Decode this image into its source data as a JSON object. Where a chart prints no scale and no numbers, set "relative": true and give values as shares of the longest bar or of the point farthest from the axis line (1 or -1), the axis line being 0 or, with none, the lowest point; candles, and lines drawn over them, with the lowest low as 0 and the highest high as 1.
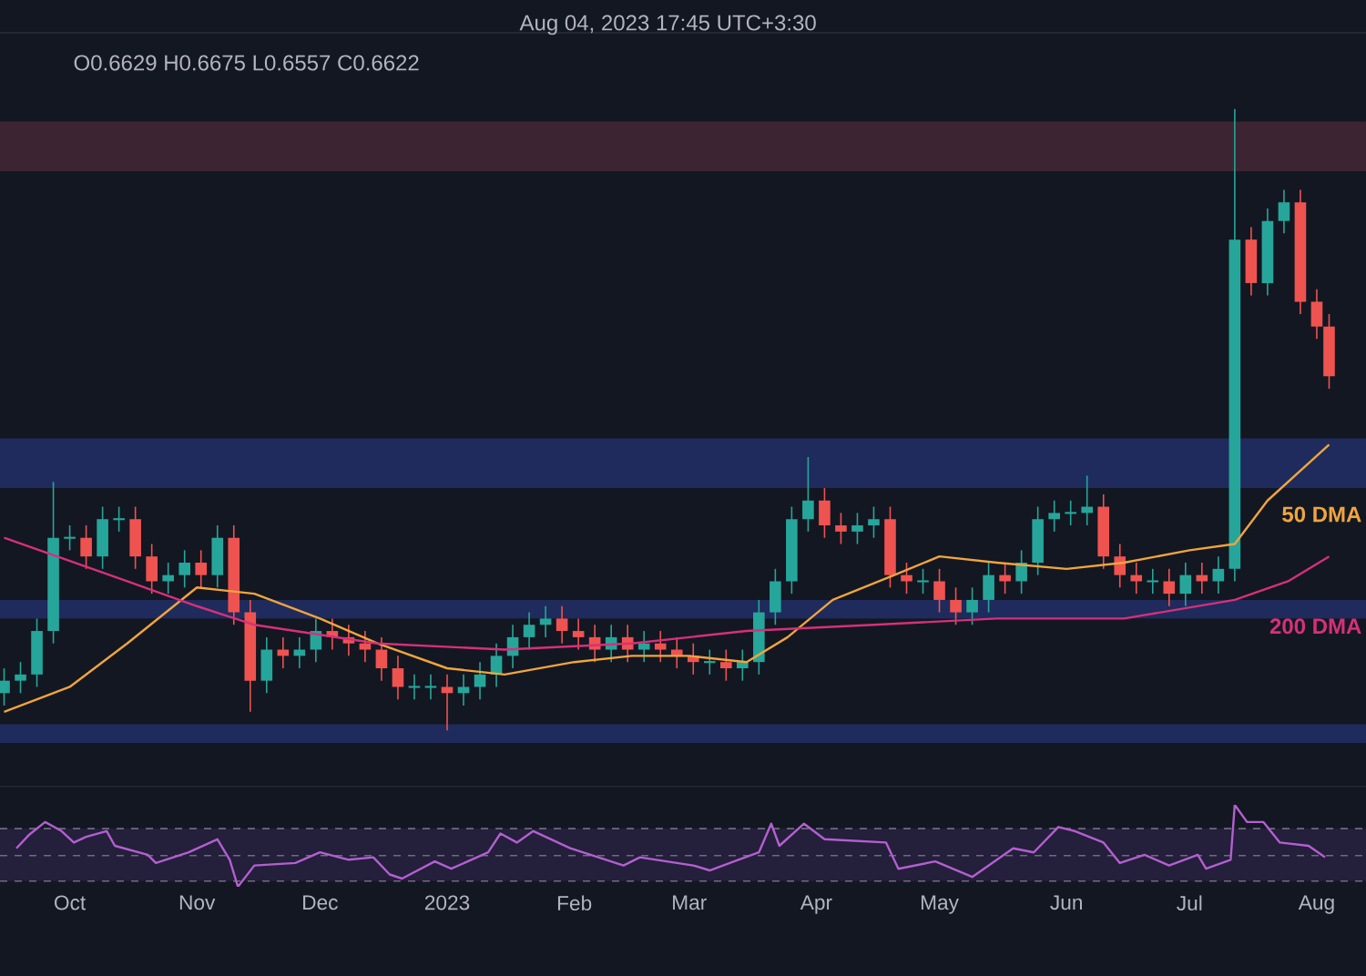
{
  "chart_data": [
    {
      "type": "candlestick",
      "relative": true,
      "xlim": [
        "2022-09-14",
        "2023-08-13"
      ],
      "tick_labels": false,
      "annotations": [
        "Aug 04, 2023 17:45 UTC+3:30",
        "O0.6629 H0.6675 L0.6557 C0.6622"
      ],
      "bands": [
        {
          "axis": "y",
          "from": 0.9,
          "to": 0.98,
          "color": "#3d2432"
        },
        {
          "axis": "y",
          "from": 0.39,
          "to": 0.47,
          "color": "#1f2b5c"
        },
        {
          "axis": "y",
          "from": 0.18,
          "to": 0.21,
          "color": "#1f2b5c"
        },
        {
          "axis": "y",
          "from": -0.02,
          "to": 0.01,
          "color": "#1f2b5c"
        }
      ],
      "x": [
        "2022-09-15",
        "2022-09-19",
        "2022-09-23",
        "2022-09-27",
        "2022-10-01",
        "2022-10-05",
        "2022-10-09",
        "2022-10-13",
        "2022-10-17",
        "2022-10-21",
        "2022-10-25",
        "2022-10-29",
        "2022-11-02",
        "2022-11-06",
        "2022-11-10",
        "2022-11-14",
        "2022-11-18",
        "2022-11-22",
        "2022-11-26",
        "2022-11-30",
        "2022-12-04",
        "2022-12-08",
        "2022-12-12",
        "2022-12-16",
        "2022-12-20",
        "2022-12-24",
        "2022-12-28",
        "2023-01-01",
        "2023-01-05",
        "2023-01-09",
        "2023-01-13",
        "2023-01-17",
        "2023-01-21",
        "2023-01-25",
        "2023-01-29",
        "2023-02-02",
        "2023-02-06",
        "2023-02-10",
        "2023-02-14",
        "2023-02-18",
        "2023-02-22",
        "2023-02-26",
        "2023-03-02",
        "2023-03-06",
        "2023-03-10",
        "2023-03-14",
        "2023-03-18",
        "2023-03-22",
        "2023-03-26",
        "2023-03-30",
        "2023-04-03",
        "2023-04-07",
        "2023-04-11",
        "2023-04-15",
        "2023-04-19",
        "2023-04-23",
        "2023-04-27",
        "2023-05-01",
        "2023-05-05",
        "2023-05-09",
        "2023-05-13",
        "2023-05-17",
        "2023-05-21",
        "2023-05-25",
        "2023-05-29",
        "2023-06-02",
        "2023-06-06",
        "2023-06-10",
        "2023-06-14",
        "2023-06-18",
        "2023-06-22",
        "2023-06-26",
        "2023-06-30",
        "2023-07-04",
        "2023-07-08",
        "2023-07-12",
        "2023-07-16",
        "2023-07-20",
        "2023-07-24",
        "2023-07-28",
        "2023-08-01",
        "2023-08-04"
      ],
      "ohlc": [
        [
          0.06,
          0.1,
          0.04,
          0.08
        ],
        [
          0.08,
          0.11,
          0.06,
          0.09
        ],
        [
          0.09,
          0.18,
          0.07,
          0.16
        ],
        [
          0.16,
          0.4,
          0.14,
          0.31
        ],
        [
          0.31,
          0.33,
          0.29,
          0.31
        ],
        [
          0.31,
          0.33,
          0.26,
          0.28
        ],
        [
          0.28,
          0.36,
          0.26,
          0.34
        ],
        [
          0.34,
          0.36,
          0.32,
          0.34
        ],
        [
          0.34,
          0.36,
          0.26,
          0.28
        ],
        [
          0.28,
          0.3,
          0.22,
          0.24
        ],
        [
          0.24,
          0.27,
          0.22,
          0.25
        ],
        [
          0.25,
          0.29,
          0.23,
          0.27
        ],
        [
          0.27,
          0.29,
          0.23,
          0.25
        ],
        [
          0.25,
          0.33,
          0.23,
          0.31
        ],
        [
          0.31,
          0.33,
          0.17,
          0.19
        ],
        [
          0.19,
          0.21,
          0.03,
          0.08
        ],
        [
          0.08,
          0.15,
          0.06,
          0.13
        ],
        [
          0.13,
          0.15,
          0.1,
          0.12
        ],
        [
          0.12,
          0.15,
          0.1,
          0.13
        ],
        [
          0.13,
          0.18,
          0.11,
          0.16
        ],
        [
          0.16,
          0.18,
          0.13,
          0.15
        ],
        [
          0.15,
          0.17,
          0.12,
          0.14
        ],
        [
          0.14,
          0.16,
          0.11,
          0.13
        ],
        [
          0.13,
          0.15,
          0.08,
          0.1
        ],
        [
          0.1,
          0.12,
          0.05,
          0.07
        ],
        [
          0.07,
          0.09,
          0.05,
          0.07
        ],
        [
          0.07,
          0.09,
          0.05,
          0.07
        ],
        [
          0.07,
          0.09,
          0.0,
          0.06
        ],
        [
          0.06,
          0.09,
          0.04,
          0.07
        ],
        [
          0.07,
          0.11,
          0.05,
          0.09
        ],
        [
          0.09,
          0.14,
          0.07,
          0.12
        ],
        [
          0.12,
          0.17,
          0.1,
          0.15
        ],
        [
          0.15,
          0.19,
          0.13,
          0.17
        ],
        [
          0.17,
          0.2,
          0.15,
          0.18
        ],
        [
          0.18,
          0.2,
          0.14,
          0.16
        ],
        [
          0.16,
          0.18,
          0.13,
          0.15
        ],
        [
          0.15,
          0.17,
          0.11,
          0.13
        ],
        [
          0.13,
          0.17,
          0.11,
          0.15
        ],
        [
          0.15,
          0.17,
          0.11,
          0.13
        ],
        [
          0.13,
          0.16,
          0.11,
          0.14
        ],
        [
          0.14,
          0.16,
          0.11,
          0.13
        ],
        [
          0.13,
          0.15,
          0.1,
          0.12
        ],
        [
          0.12,
          0.14,
          0.09,
          0.11
        ],
        [
          0.11,
          0.13,
          0.09,
          0.11
        ],
        [
          0.11,
          0.13,
          0.08,
          0.1
        ],
        [
          0.1,
          0.13,
          0.08,
          0.11
        ],
        [
          0.11,
          0.21,
          0.09,
          0.19
        ],
        [
          0.19,
          0.26,
          0.17,
          0.24
        ],
        [
          0.24,
          0.36,
          0.22,
          0.34
        ],
        [
          0.34,
          0.44,
          0.32,
          0.37
        ],
        [
          0.37,
          0.39,
          0.31,
          0.33
        ],
        [
          0.33,
          0.35,
          0.3,
          0.32
        ],
        [
          0.32,
          0.35,
          0.3,
          0.33
        ],
        [
          0.33,
          0.36,
          0.31,
          0.34
        ],
        [
          0.34,
          0.36,
          0.23,
          0.25
        ],
        [
          0.25,
          0.27,
          0.22,
          0.24
        ],
        [
          0.24,
          0.26,
          0.22,
          0.24
        ],
        [
          0.24,
          0.26,
          0.19,
          0.21
        ],
        [
          0.21,
          0.23,
          0.17,
          0.19
        ],
        [
          0.19,
          0.23,
          0.17,
          0.21
        ],
        [
          0.21,
          0.27,
          0.19,
          0.25
        ],
        [
          0.25,
          0.27,
          0.22,
          0.24
        ],
        [
          0.24,
          0.29,
          0.22,
          0.27
        ],
        [
          0.27,
          0.36,
          0.25,
          0.34
        ],
        [
          0.34,
          0.37,
          0.32,
          0.35
        ],
        [
          0.35,
          0.37,
          0.33,
          0.35
        ],
        [
          0.35,
          0.41,
          0.33,
          0.36
        ],
        [
          0.36,
          0.38,
          0.26,
          0.28
        ],
        [
          0.28,
          0.3,
          0.23,
          0.25
        ],
        [
          0.25,
          0.27,
          0.22,
          0.24
        ],
        [
          0.24,
          0.26,
          0.22,
          0.24
        ],
        [
          0.24,
          0.26,
          0.2,
          0.22
        ],
        [
          0.22,
          0.27,
          0.2,
          0.25
        ],
        [
          0.25,
          0.27,
          0.22,
          0.24
        ],
        [
          0.24,
          0.28,
          0.22,
          0.26
        ],
        [
          0.26,
          1.0,
          0.24,
          0.79
        ],
        [
          0.79,
          0.81,
          0.7,
          0.72
        ],
        [
          0.72,
          0.84,
          0.7,
          0.82
        ],
        [
          0.82,
          0.87,
          0.8,
          0.85
        ],
        [
          0.85,
          0.87,
          0.67,
          0.69
        ],
        [
          0.69,
          0.71,
          0.63,
          0.65
        ],
        [
          0.65,
          0.67,
          0.55,
          0.57
        ]
      ],
      "series": [
        {
          "type": "line",
          "name": "50 DMA",
          "color": "#f0a53c",
          "x": [
            "2022-09-15",
            "2022-10-01",
            "2022-10-15",
            "2022-11-01",
            "2022-11-15",
            "2022-12-01",
            "2022-12-15",
            "2023-01-01",
            "2023-01-15",
            "2023-02-01",
            "2023-02-15",
            "2023-03-01",
            "2023-03-15",
            "2023-03-25",
            "2023-04-05",
            "2023-04-20",
            "2023-05-01",
            "2023-05-15",
            "2023-06-01",
            "2023-06-15",
            "2023-07-01",
            "2023-07-12",
            "2023-07-20",
            "2023-08-04"
          ],
          "values": [
            0.03,
            0.07,
            0.14,
            0.23,
            0.22,
            0.18,
            0.14,
            0.1,
            0.09,
            0.11,
            0.12,
            0.12,
            0.11,
            0.15,
            0.21,
            0.25,
            0.28,
            0.27,
            0.26,
            0.27,
            0.29,
            0.3,
            0.37,
            0.46
          ]
        },
        {
          "type": "line",
          "name": "200 DMA",
          "color": "#d6307a",
          "x": [
            "2022-09-15",
            "2022-10-15",
            "2022-11-01",
            "2022-11-15",
            "2022-12-15",
            "2023-01-15",
            "2023-02-15",
            "2023-03-15",
            "2023-04-15",
            "2023-05-15",
            "2023-06-15",
            "2023-07-12",
            "2023-07-25",
            "2023-08-04"
          ],
          "values": [
            0.31,
            0.24,
            0.2,
            0.17,
            0.14,
            0.13,
            0.14,
            0.16,
            0.17,
            0.18,
            0.18,
            0.21,
            0.24,
            0.28
          ]
        }
      ]
    },
    {
      "type": "line",
      "relative": true,
      "xlim": [
        "2022-09-14",
        "2023-08-13"
      ],
      "tick_labels": "x",
      "xticks": [
        {
          "value": "2022-10-01",
          "label": "Oct"
        },
        {
          "value": "2022-11-01",
          "label": "Nov"
        },
        {
          "value": "2022-12-01",
          "label": "Dec"
        },
        {
          "value": "2023-01-01",
          "label": "2023"
        },
        {
          "value": "2023-02-01",
          "label": "Feb"
        },
        {
          "value": "2023-03-01",
          "label": "Mar"
        },
        {
          "value": "2023-04-01",
          "label": "Apr"
        },
        {
          "value": "2023-05-01",
          "label": "May"
        },
        {
          "value": "2023-06-01",
          "label": "Jun"
        },
        {
          "value": "2023-07-01",
          "label": "Jul"
        },
        {
          "value": "2023-08-01",
          "label": "Aug"
        }
      ],
      "bands": [
        {
          "axis": "y",
          "from": 0.07,
          "to": 0.71,
          "color": "#241f3a"
        }
      ],
      "ref_lines": [
        {
          "axis": "y",
          "value": 0.71,
          "line_style": "dashed",
          "color": "#6f6a80"
        },
        {
          "axis": "y",
          "value": 0.38,
          "line_style": "dashed",
          "color": "#6f6a80"
        },
        {
          "axis": "y",
          "value": 0.07,
          "line_style": "dashed",
          "color": "#6f6a80"
        }
      ],
      "series": [
        {
          "color": "#b35fd1",
          "x": [
            "2022-09-18",
            "2022-09-21",
            "2022-09-25",
            "2022-09-29",
            "2022-10-02",
            "2022-10-05",
            "2022-10-10",
            "2022-10-12",
            "2022-10-20",
            "2022-10-22",
            "2022-10-30",
            "2022-11-06",
            "2022-11-09",
            "2022-11-11",
            "2022-11-15",
            "2022-11-25",
            "2022-12-01",
            "2022-12-08",
            "2022-12-14",
            "2022-12-18",
            "2022-12-21",
            "2022-12-29",
            "2023-01-02",
            "2023-01-11",
            "2023-01-14",
            "2023-01-18",
            "2023-01-22",
            "2023-01-31",
            "2023-02-13",
            "2023-02-17",
            "2023-03-02",
            "2023-03-06",
            "2023-03-13",
            "2023-03-18",
            "2023-03-21",
            "2023-03-23",
            "2023-03-29",
            "2023-04-03",
            "2023-04-18",
            "2023-04-21",
            "2023-04-30",
            "2023-05-09",
            "2023-05-19",
            "2023-05-24",
            "2023-05-30",
            "2023-06-03",
            "2023-06-10",
            "2023-06-14",
            "2023-06-20",
            "2023-06-26",
            "2023-07-03",
            "2023-07-05",
            "2023-07-11",
            "2023-07-12",
            "2023-07-15",
            "2023-07-19",
            "2023-07-23",
            "2023-07-30",
            "2023-08-03"
          ],
          "values": [
            0.47,
            0.63,
            0.79,
            0.68,
            0.54,
            0.61,
            0.68,
            0.5,
            0.39,
            0.29,
            0.42,
            0.58,
            0.33,
            0.0,
            0.26,
            0.29,
            0.42,
            0.33,
            0.36,
            0.15,
            0.1,
            0.31,
            0.22,
            0.42,
            0.65,
            0.54,
            0.68,
            0.47,
            0.26,
            0.36,
            0.26,
            0.2,
            0.33,
            0.42,
            0.77,
            0.5,
            0.77,
            0.58,
            0.54,
            0.22,
            0.31,
            0.12,
            0.47,
            0.42,
            0.73,
            0.68,
            0.54,
            0.29,
            0.39,
            0.26,
            0.39,
            0.22,
            0.33,
            1.0,
            0.79,
            0.79,
            0.54,
            0.5,
            0.36
          ]
        }
      ]
    }
  ]
}
